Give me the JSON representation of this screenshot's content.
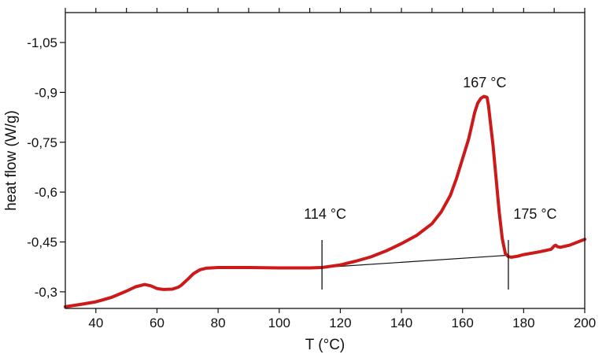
{
  "chart_data": {
    "type": "line",
    "xlabel": "T (°C)",
    "ylabel": "heat flow (W/g)",
    "xlim": [
      30,
      200
    ],
    "ylim": [
      -0.25,
      -1.14
    ],
    "y_inverted": true,
    "grid": false,
    "x_ticks": [
      40,
      60,
      80,
      100,
      120,
      140,
      160,
      180,
      200
    ],
    "y_ticks": [
      -0.3,
      -0.45,
      -0.6,
      -0.75,
      -0.9,
      -1.05
    ],
    "y_tick_labels": [
      "-0,3",
      "-0,45",
      "-0,6",
      "-0,75",
      "-0,9",
      "-1,05"
    ],
    "series": [
      {
        "color": "#cc1a1a",
        "x": [
          30,
          35,
          40,
          45,
          50,
          53,
          56,
          58,
          60,
          62,
          65,
          67,
          68,
          70,
          72,
          74,
          76,
          80,
          90,
          100,
          110,
          114,
          120,
          125,
          130,
          135,
          140,
          145,
          150,
          153,
          156,
          158,
          160,
          162,
          163,
          164,
          165,
          166,
          167,
          168,
          168.5,
          169,
          170,
          171,
          172,
          173,
          174,
          175,
          176,
          178,
          180,
          185,
          189,
          190,
          190.5,
          191,
          192,
          195,
          200
        ],
        "y": [
          -0.255,
          -0.262,
          -0.27,
          -0.283,
          -0.302,
          -0.315,
          -0.322,
          -0.318,
          -0.31,
          -0.307,
          -0.308,
          -0.314,
          -0.32,
          -0.337,
          -0.355,
          -0.366,
          -0.371,
          -0.373,
          -0.373,
          -0.372,
          -0.372,
          -0.373,
          -0.381,
          -0.392,
          -0.405,
          -0.423,
          -0.445,
          -0.47,
          -0.505,
          -0.54,
          -0.59,
          -0.64,
          -0.7,
          -0.76,
          -0.8,
          -0.84,
          -0.868,
          -0.882,
          -0.888,
          -0.885,
          -0.86,
          -0.82,
          -0.74,
          -0.64,
          -0.54,
          -0.46,
          -0.415,
          -0.406,
          -0.404,
          -0.407,
          -0.412,
          -0.42,
          -0.428,
          -0.438,
          -0.44,
          -0.436,
          -0.434,
          -0.44,
          -0.458
        ]
      },
      {
        "color": "#111111",
        "x": [
          114,
          175
        ],
        "y": [
          -0.373,
          -0.41
        ]
      }
    ],
    "markers": [
      {
        "x": 114,
        "label": "114 °C"
      },
      {
        "x": 175,
        "label": "175 °C"
      }
    ],
    "annotations": [
      {
        "x": 167,
        "label": "167 °C"
      }
    ]
  }
}
